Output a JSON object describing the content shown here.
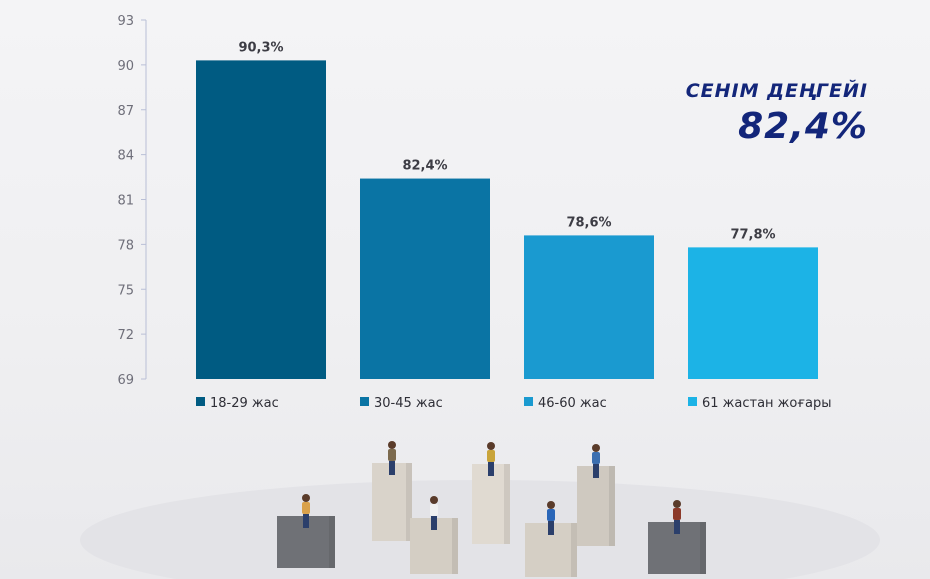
{
  "headline": {
    "title": "СЕНІМ ДЕҢГЕЙІ",
    "value": "82,4%"
  },
  "chart_data": {
    "type": "bar",
    "categories": [
      "18-29 жас",
      "30-45 жас",
      "46-60 жас",
      "61 жастан жоғары"
    ],
    "values": [
      90.3,
      82.4,
      78.6,
      77.8
    ],
    "data_labels": [
      "90,3%",
      "82,4%",
      "78,6%",
      "77,8%"
    ],
    "colors": [
      "#005b82",
      "#0a74a4",
      "#1a9ad0",
      "#1cb3e6"
    ],
    "y_ticks": [
      "93",
      "90",
      "87",
      "84",
      "81",
      "78",
      "75",
      "72",
      "69"
    ],
    "ylim": [
      69,
      93
    ],
    "grid": false,
    "legend_position": "bottom"
  },
  "decor": {
    "block_colors": [
      "#6f7176",
      "#d9d3ca",
      "#d4cec4",
      "#e0dad1",
      "#d5cfc5",
      "#cfc9c0",
      "#6f7176"
    ]
  }
}
